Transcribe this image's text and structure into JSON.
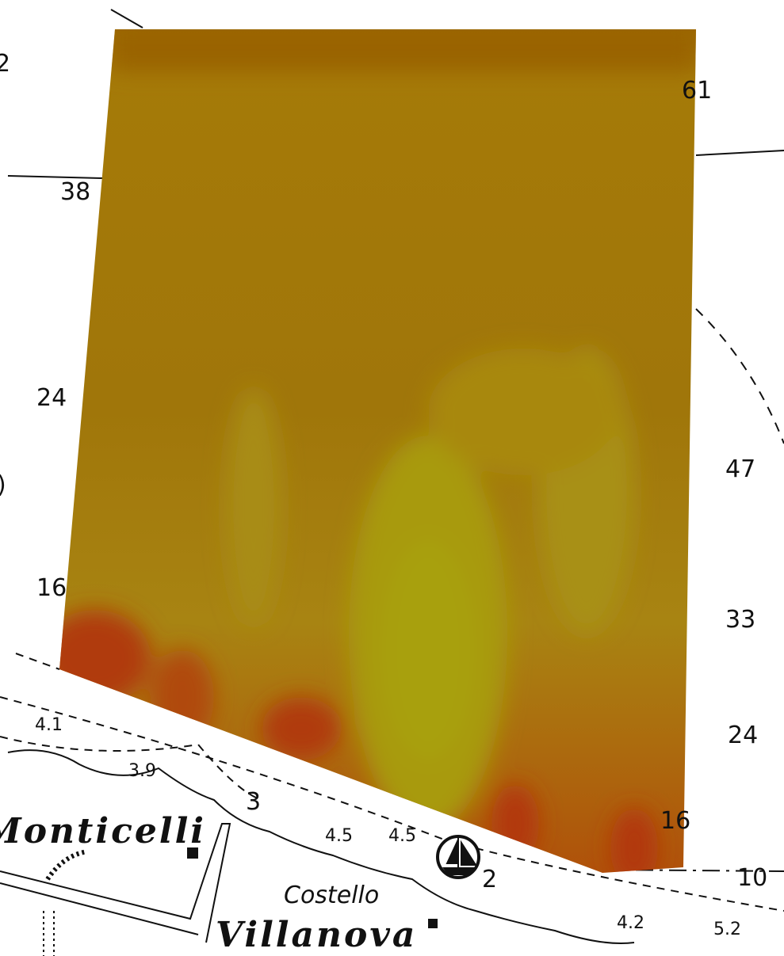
{
  "depth_labels": [
    "2",
    "61",
    "38",
    "24",
    ")",
    "47",
    "16",
    "33",
    "4.1",
    "24",
    "3.9",
    "3",
    "4.5",
    "4.5",
    "16",
    "2",
    "10",
    "4.2",
    "5.2"
  ],
  "place_names": [
    "Monticelli",
    "Costello",
    "Villanova"
  ]
}
